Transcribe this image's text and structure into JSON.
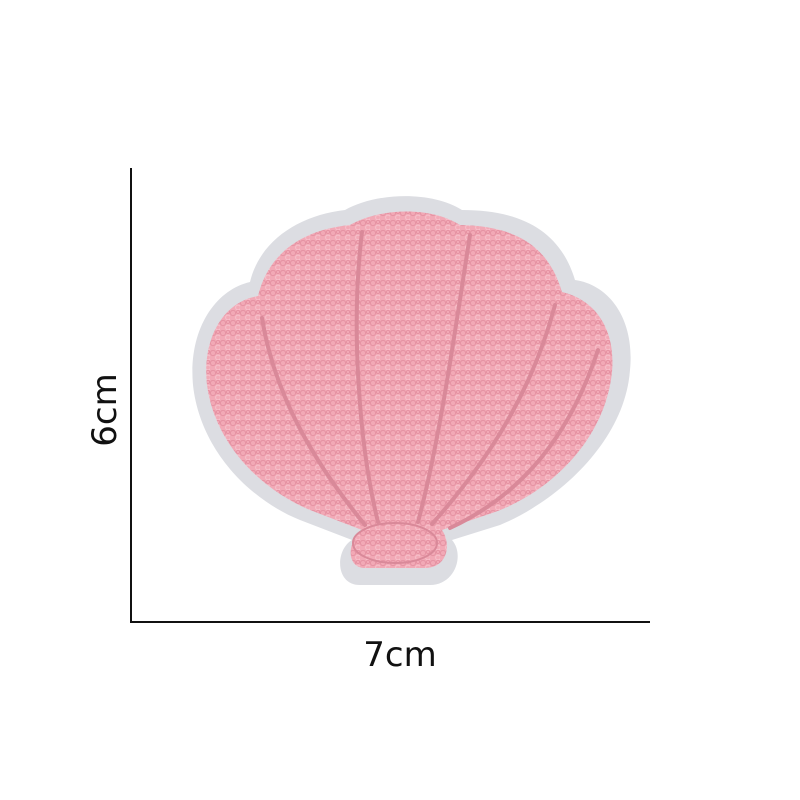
{
  "dimensions": {
    "width_label": "7cm",
    "height_label": "6cm"
  },
  "patch": {
    "icon": "seashell-patch-icon",
    "fill_color": "#f2a9b6",
    "border_color": "#dcdde2",
    "ridge_color": "#d98999"
  },
  "colors": {
    "background": "#ffffff",
    "line": "#111111"
  }
}
